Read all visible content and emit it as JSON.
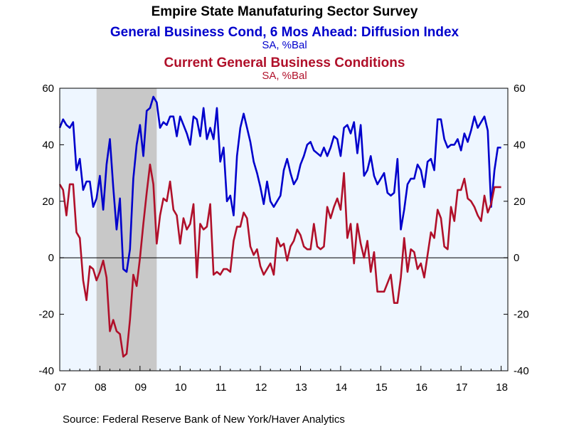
{
  "chart_data": {
    "type": "line",
    "title": "Empire State Manufaturing Sector Survey",
    "series_titles": [
      {
        "name": "General Business Cond, 6 Mos Ahead: Diffusion Index",
        "unit": "SA, %Bal",
        "color": "#0000cc"
      },
      {
        "name": "Current General Business Conditions",
        "unit": "SA, %Bal",
        "color": "#b0102a"
      }
    ],
    "source": "Source:  Federal Reserve Bank of New York/Haver Analytics",
    "ylim": [
      -40,
      60
    ],
    "y_ticks": [
      "-40",
      "-20",
      "0",
      "20",
      "40",
      "60"
    ],
    "x_tick_labels": [
      "07",
      "08",
      "09",
      "10",
      "11",
      "12",
      "13",
      "14",
      "15",
      "16",
      "17",
      "18"
    ],
    "recession_shading": {
      "start": "2007-12",
      "end": "2009-06",
      "color": "#c8c8c8"
    },
    "plot_background": "#eef6ff",
    "zero_line": true,
    "start_month": "2007-01",
    "end_month": "2018-03",
    "series": [
      {
        "name": "General Business Cond, 6 Mos Ahead: Diffusion Index",
        "color": "#0000cc",
        "values": [
          46,
          49,
          47,
          46,
          48,
          31,
          35,
          24,
          27,
          27,
          18,
          21,
          29,
          17,
          33,
          42,
          25,
          10,
          21,
          -4,
          -5,
          3,
          28,
          40,
          47,
          36,
          52,
          53,
          57,
          55,
          46,
          48,
          47,
          50,
          50,
          43,
          50,
          47,
          44,
          40,
          50,
          49,
          43,
          53,
          42,
          46,
          42,
          53,
          34,
          39,
          20,
          22,
          15,
          36,
          46,
          51,
          46,
          41,
          34,
          30,
          25,
          19,
          27,
          20,
          18,
          20,
          22,
          31,
          35,
          30,
          26,
          28,
          33,
          36,
          40,
          41,
          38,
          37,
          36,
          39,
          36,
          39,
          43,
          42,
          36,
          46,
          47,
          44,
          48,
          37,
          47,
          29,
          31,
          36,
          29,
          26,
          28,
          30,
          23,
          22,
          23,
          35,
          10,
          17,
          26,
          28,
          28,
          33,
          31,
          25,
          34,
          35,
          31,
          49,
          49,
          42,
          39,
          40,
          40,
          42,
          38,
          44,
          41,
          45,
          50,
          46,
          48,
          50,
          45,
          18,
          31,
          39,
          39
        ]
      },
      {
        "name": "Current General Business Conditions",
        "color": "#b0102a",
        "values": [
          26,
          24,
          15,
          26,
          26,
          9,
          7,
          -8,
          -15,
          -3,
          -4,
          -8,
          -5,
          -1,
          -7,
          -26,
          -22,
          -26,
          -27,
          -35,
          -34,
          -22,
          -6,
          -10,
          0,
          12,
          23,
          33,
          26,
          5,
          15,
          21,
          20,
          27,
          17,
          15,
          5,
          14,
          10,
          12,
          19,
          -7,
          12,
          10,
          11,
          19,
          -6,
          -5,
          -6,
          -4,
          -4,
          -5,
          6,
          11,
          11,
          16,
          14,
          4,
          1,
          3,
          -3,
          -6,
          -4,
          -2,
          -6,
          7,
          4,
          5,
          -1,
          4,
          6,
          10,
          8,
          4,
          3,
          3,
          12,
          4,
          3,
          4,
          18,
          14,
          18,
          21,
          17,
          30,
          7,
          12,
          -2,
          12,
          5,
          0,
          6,
          -5,
          2,
          -12,
          -12,
          -12,
          -9,
          -6,
          -16,
          -16,
          -7,
          7,
          -5,
          3,
          2,
          -4,
          -2,
          -7,
          1,
          9,
          7,
          17,
          14,
          4,
          3,
          18,
          13,
          24,
          24,
          28,
          21,
          20,
          18,
          15,
          13,
          22,
          16,
          19,
          25,
          25,
          25
        ]
      }
    ]
  }
}
